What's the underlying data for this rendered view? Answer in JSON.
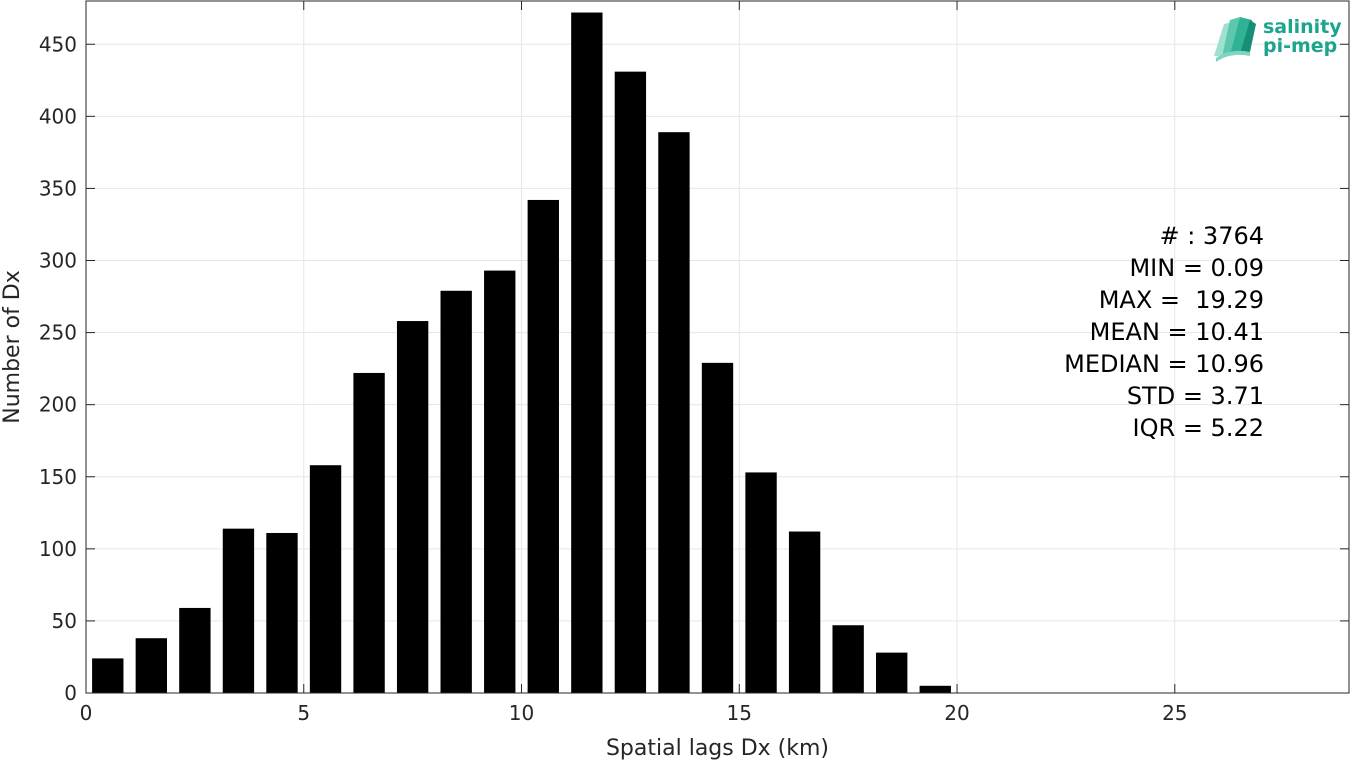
{
  "chart_data": {
    "type": "bar",
    "xlabel": "Spatial lags Dx (km)",
    "ylabel": "Number of Dx",
    "xlim": [
      0,
      29
    ],
    "ylim": [
      0,
      480
    ],
    "xticks": [
      0,
      5,
      10,
      15,
      20,
      25
    ],
    "yticks": [
      0,
      50,
      100,
      150,
      200,
      250,
      300,
      350,
      400,
      450
    ],
    "bar_color": "#000000",
    "grid": true,
    "x": [
      0.5,
      1.5,
      2.5,
      3.5,
      4.5,
      5.5,
      6.5,
      7.5,
      8.5,
      9.5,
      10.5,
      11.5,
      12.5,
      13.5,
      14.5,
      15.5,
      16.5,
      17.5,
      18.5,
      19.5
    ],
    "values": [
      24,
      38,
      59,
      114,
      111,
      158,
      222,
      258,
      279,
      293,
      342,
      472,
      431,
      389,
      229,
      153,
      112,
      47,
      28,
      5
    ],
    "stats": [
      "# : 3764",
      "MIN = 0.09",
      "MAX =  19.29",
      "MEAN = 10.41",
      "MEDIAN = 10.96",
      "STD = 3.71",
      "IQR = 5.22"
    ]
  },
  "logo": {
    "line1": "salinity",
    "line2": "pi-mep",
    "color": "#1aa58c"
  }
}
